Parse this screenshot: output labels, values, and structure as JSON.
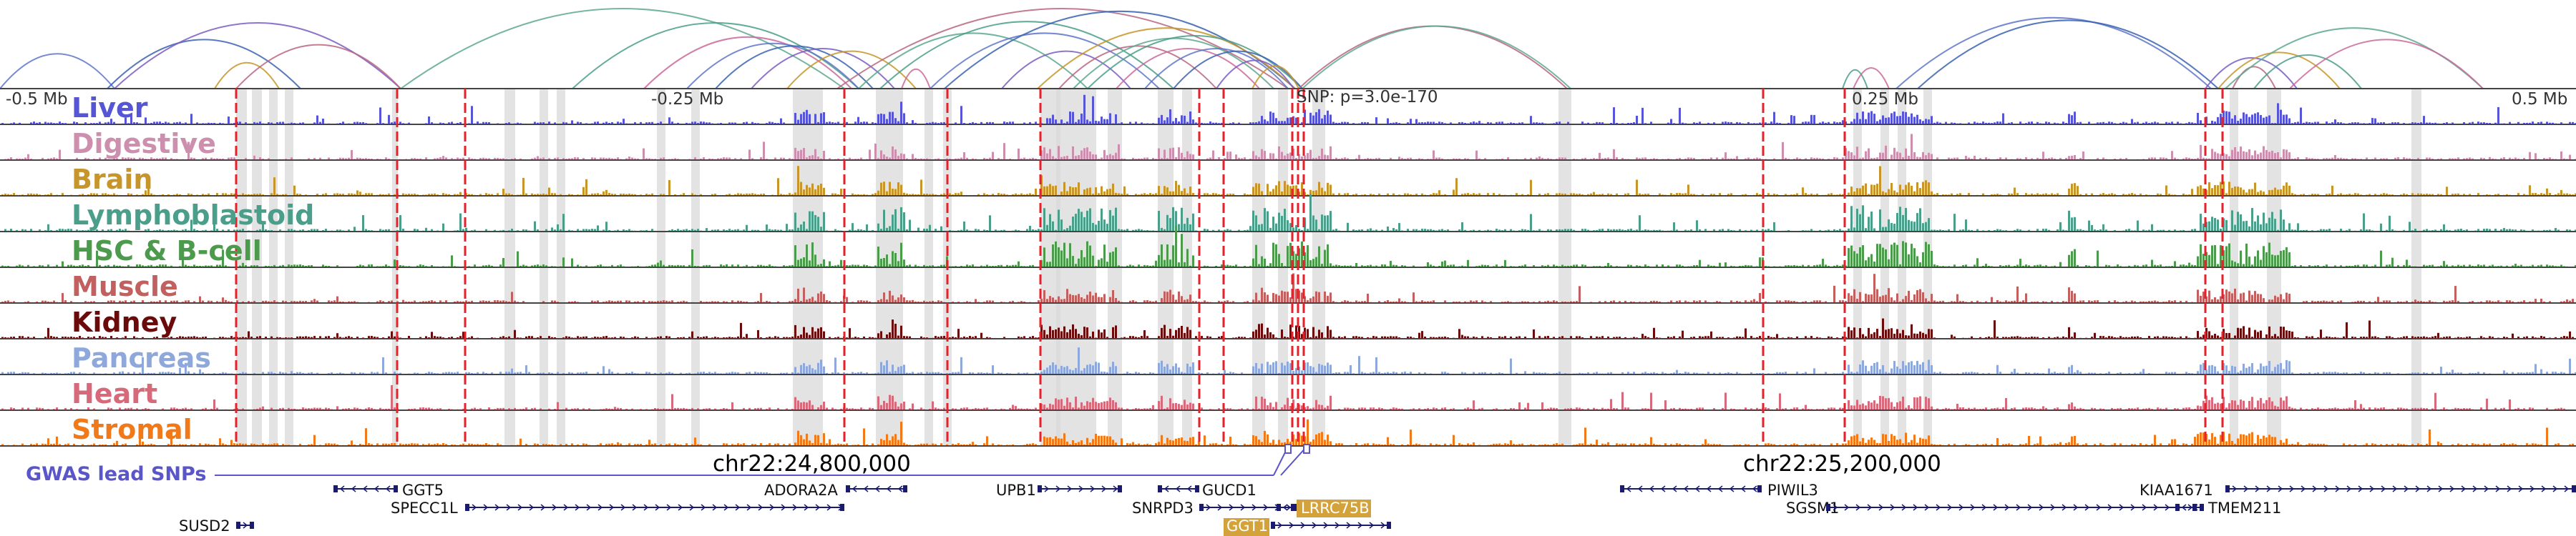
{
  "tracks": [
    {
      "name": "Liver",
      "color": "#5555d6"
    },
    {
      "name": "Digestive",
      "color": "#cc8fae"
    },
    {
      "name": "Brain",
      "color": "#c7952a"
    },
    {
      "name": "Lymphoblastoid",
      "color": "#4a9e8a"
    },
    {
      "name": "HSC & B-cell",
      "color": "#4c9a4c"
    },
    {
      "name": "Muscle",
      "color": "#c26060"
    },
    {
      "name": "Kidney",
      "color": "#6b0a0a"
    },
    {
      "name": "Pancreas",
      "color": "#8ea8dc"
    },
    {
      "name": "Heart",
      "color": "#d76a7a"
    },
    {
      "name": "Stromal",
      "color": "#f07a1a"
    }
  ],
  "scale_labels": {
    "left": "-0.5 Mb",
    "mid_left": "-0.25 Mb",
    "snp": "SNP: p=3.0e-170",
    "mid_right": "0.25 Mb",
    "right": "0.5 Mb"
  },
  "chromosome_labels": [
    "chr22:24,800,000",
    "chr22:25,200,000"
  ],
  "gwas_label": "GWAS lead SNPs",
  "genes": [
    {
      "name": "GGT5",
      "highlight": false
    },
    {
      "name": "SPECC1L",
      "highlight": false
    },
    {
      "name": "SUSD2",
      "highlight": false
    },
    {
      "name": "ADORA2A",
      "highlight": false
    },
    {
      "name": "UPB1",
      "highlight": false
    },
    {
      "name": "GUCD1",
      "highlight": false
    },
    {
      "name": "SNRPD3",
      "highlight": false
    },
    {
      "name": "LRRC75B",
      "highlight": true
    },
    {
      "name": "GGT1",
      "highlight": true
    },
    {
      "name": "PIWIL3",
      "highlight": false
    },
    {
      "name": "SGSM1",
      "highlight": false
    },
    {
      "name": "KIAA1671",
      "highlight": false
    },
    {
      "name": "TMEM211",
      "highlight": false
    }
  ],
  "colors": {
    "red_line": "#e8202a",
    "gray_band": "#d9d9d9",
    "gene_line": "#1a1a6e",
    "highlight_gene": "#d4a23a",
    "gwas_line": "#5a55c8"
  }
}
